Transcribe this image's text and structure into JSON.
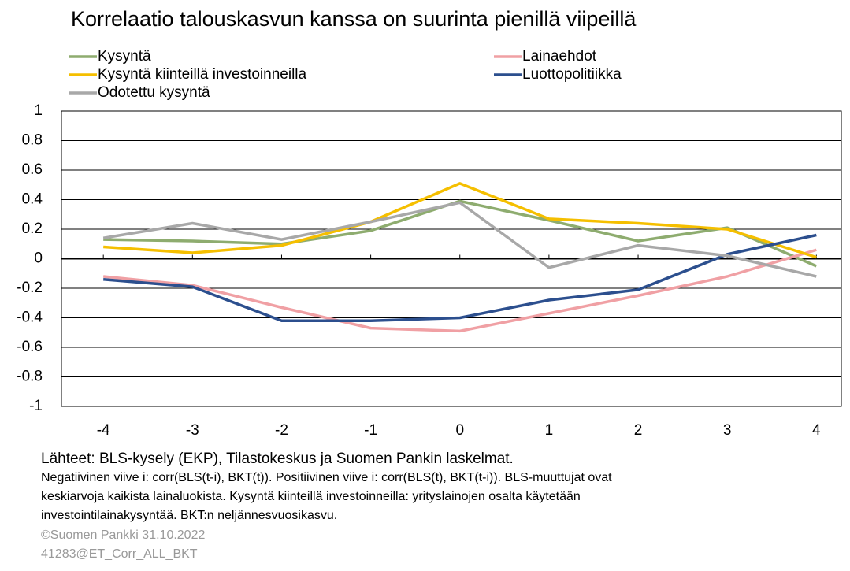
{
  "chart_data": {
    "type": "line",
    "title": "Korrelaatio talouskasvun kanssa on suurinta pienillä viipeillä",
    "x": [
      -4,
      -3,
      -2,
      -1,
      0,
      1,
      2,
      3,
      4
    ],
    "xlim": [
      -4.47,
      4.28
    ],
    "xticks": [
      -4,
      -3,
      -2,
      -1,
      0,
      1,
      2,
      3,
      4
    ],
    "ylim": [
      -1,
      1
    ],
    "yticks": [
      -1,
      -0.8,
      -0.6,
      -0.4,
      -0.2,
      0,
      0.2,
      0.4,
      0.6,
      0.8,
      1
    ],
    "grid": true,
    "series": [
      {
        "name": "Kysyntä",
        "color": "#8eac6f",
        "values": [
          0.13,
          0.12,
          0.1,
          0.19,
          0.39,
          0.26,
          0.12,
          0.21,
          -0.05
        ]
      },
      {
        "name": "Lainaehdot",
        "color": "#f0a0a4",
        "values": [
          -0.12,
          -0.18,
          -0.33,
          -0.47,
          -0.49,
          -0.37,
          -0.25,
          -0.12,
          0.06
        ]
      },
      {
        "name": "Kysyntä kiinteillä investoinneilla",
        "color": "#f5bf00",
        "values": [
          0.08,
          0.04,
          0.09,
          0.25,
          0.51,
          0.27,
          0.24,
          0.2,
          0.01
        ]
      },
      {
        "name": "Luottopolitiikka",
        "color": "#2c4f8e",
        "values": [
          -0.14,
          -0.19,
          -0.42,
          -0.42,
          -0.4,
          -0.28,
          -0.21,
          0.03,
          0.16
        ]
      },
      {
        "name": "Odotettu kysyntä",
        "color": "#a8a8a8",
        "values": [
          0.14,
          0.24,
          0.13,
          0.25,
          0.38,
          -0.06,
          0.09,
          0.02,
          -0.12
        ]
      }
    ],
    "source": "Lähteet: BLS-kysely (EKP), Tilastokeskus ja Suomen Pankin laskelmat.",
    "notes": [
      "Negatiivinen viive i: corr(BLS(t-i), BKT(t)). Positiivinen viive i: corr(BLS(t), BKT(t-i)). BLS-muuttujat ovat",
      "keskiarvoja kaikista lainaluokista. Kysyntä kiinteillä investoinneilla: yrityslainojen osalta käytetään",
      "investointilainakysyntää. BKT:n neljännesvuosikasvu."
    ],
    "copyright": "©Suomen Pankki 31.10.2022",
    "code": "41283@ET_Corr_ALL_BKT"
  }
}
